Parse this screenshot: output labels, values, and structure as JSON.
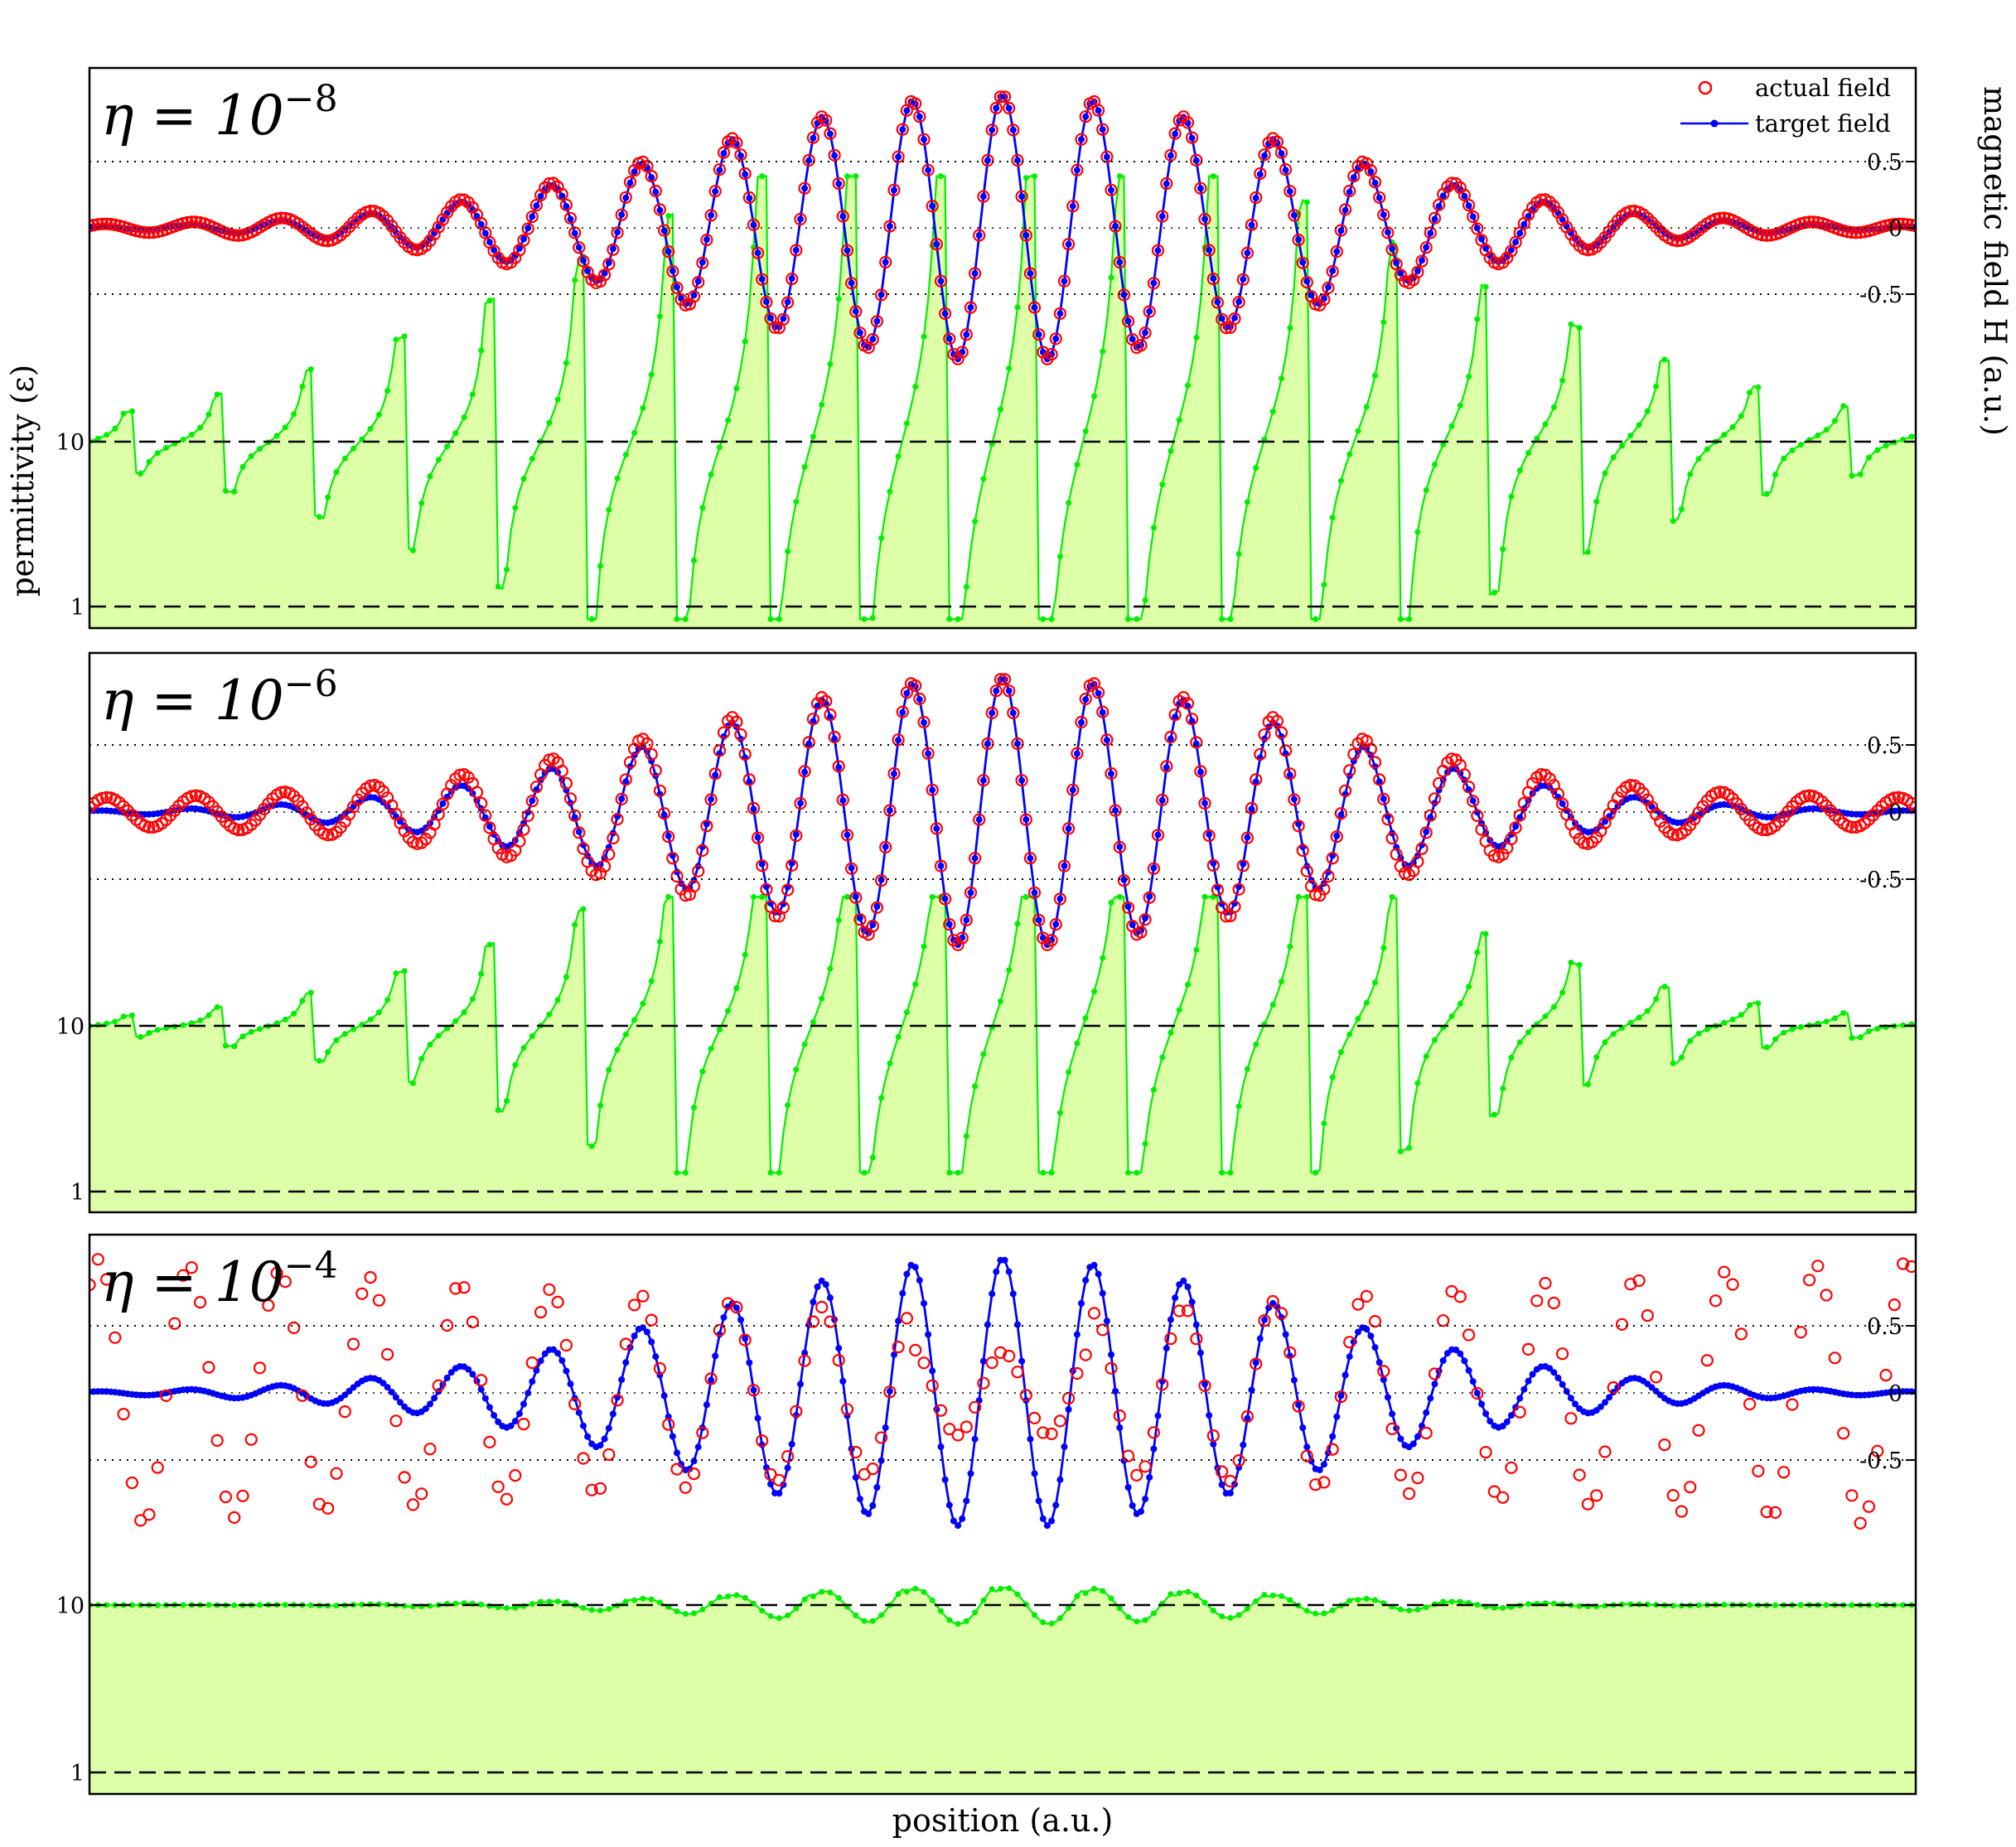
{
  "figure": {
    "xlabel": "position (a.u.)",
    "ylabel_left": "permittivity (ε)",
    "ylabel_right": "magnetic field H (a.u.)",
    "legend": {
      "actual": "actual field",
      "target": "target field",
      "placement": "top-right"
    }
  },
  "colors": {
    "actual_field": "#ff0000",
    "target_field": "#0000ff",
    "permittivity_line": "#00ee00",
    "permittivity_fill": "#dcffa8",
    "frame": "#000000"
  },
  "chart_data": [
    {
      "type": "line",
      "panel_label": "η = 10⁻⁸",
      "eta_base": "η = 10",
      "eta_exp": "−8",
      "x_range": [
        0,
        1
      ],
      "field_axis": {
        "ticks": [
          0.5,
          0,
          -0.5
        ],
        "tick_labels": [
          "0.5",
          "0",
          "-0.5"
        ],
        "gridlines": "dotted"
      },
      "permittivity_axis": {
        "scale": "log",
        "ticks": [
          10,
          1
        ],
        "tick_labels": [
          "10",
          "1"
        ],
        "reference_lines": "dashed"
      },
      "target_field": {
        "name": "target field",
        "model": "gaussian-modulated cosine",
        "peak": 1.0,
        "center": 0.5,
        "width": 0.165,
        "period": 0.0495
      },
      "actual_field": {
        "name": "actual field",
        "model": "target + background oscillation",
        "background_amplitude": 0.02,
        "background_period": 0.049
      },
      "permittivity": {
        "baseline": 10,
        "model": "resonant spikes, clipped at frame",
        "spike_width": 0.22,
        "min_clip": 0.85
      }
    },
    {
      "type": "line",
      "panel_label": "η = 10⁻⁶",
      "eta_base": "η = 10",
      "eta_exp": "−6",
      "x_range": [
        0,
        1
      ],
      "field_axis": {
        "ticks": [
          0.5,
          0,
          -0.5
        ],
        "tick_labels": [
          "0.5",
          "0",
          "-0.5"
        ],
        "gridlines": "dotted"
      },
      "permittivity_axis": {
        "scale": "log",
        "ticks": [
          10,
          1
        ],
        "tick_labels": [
          "10",
          "1"
        ],
        "reference_lines": "dashed"
      },
      "target_field": {
        "name": "target field",
        "model": "gaussian-modulated cosine",
        "peak": 1.0,
        "center": 0.5,
        "width": 0.165,
        "period": 0.0495
      },
      "actual_field": {
        "name": "actual field",
        "model": "target + background oscillation",
        "background_amplitude": 0.1,
        "background_period": 0.049
      },
      "permittivity": {
        "baseline": 10,
        "model": "resonant spikes, moderate",
        "spike_width": 0.19,
        "min_clip": 1.3
      }
    },
    {
      "type": "line",
      "panel_label": "η = 10⁻⁴",
      "eta_base": "η = 10",
      "eta_exp": "−4",
      "x_range": [
        0,
        1
      ],
      "field_axis": {
        "ticks": [
          0.5,
          0,
          -0.5
        ],
        "tick_labels": [
          "0.5",
          "0",
          "-0.5"
        ],
        "gridlines": "dotted"
      },
      "permittivity_axis": {
        "scale": "log",
        "ticks": [
          10,
          1
        ],
        "tick_labels": [
          "10",
          "1"
        ],
        "reference_lines": "dashed"
      },
      "target_field": {
        "name": "target field",
        "model": "gaussian-modulated cosine",
        "peak": 1.0,
        "center": 0.5,
        "width": 0.165,
        "period": 0.0495
      },
      "actual_field": {
        "name": "actual field",
        "model": "growing oscillation toward edges",
        "center_amplitude": 0.55,
        "edge_amplitude": 1.0,
        "period": 0.0495
      },
      "permittivity": {
        "baseline": 10,
        "model": "small sawtooth ripples",
        "ripple_max": 13,
        "ripple_min": 8.4
      }
    }
  ]
}
